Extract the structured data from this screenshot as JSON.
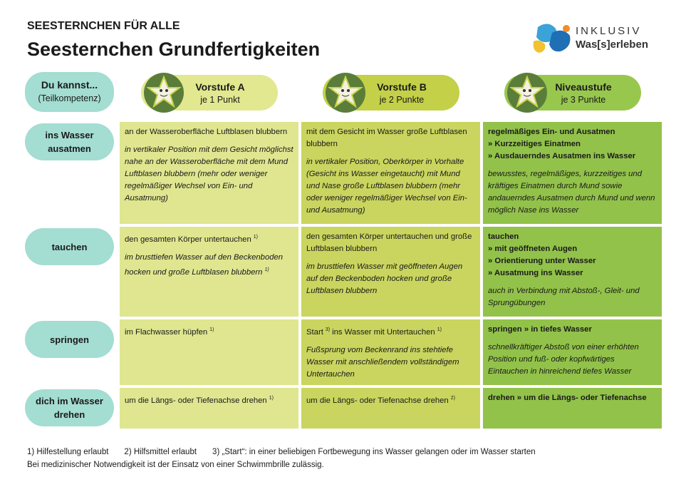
{
  "header": {
    "kicker": "SEESTERNCHEN FÜR ALLE",
    "title": "Seesternchen Grundfertigkeiten"
  },
  "logo": {
    "line1": "INKLUSIV",
    "line2": "Was[s]erleben"
  },
  "table": {
    "corner": {
      "title": "Du kannst...",
      "subtitle": "(Teilkompetenz)"
    },
    "levels": [
      {
        "name": "Vorstufe A",
        "points": "je 1 Punkt",
        "header_color": "#e1e88f",
        "color": "#dfe68f"
      },
      {
        "name": "Vorstufe B",
        "points": "je 2 Punkte",
        "header_color": "#c3d048",
        "color": "#c9d55e"
      },
      {
        "name": "Niveaustufe",
        "points": "je 3 Punkte",
        "header_color": "#98c74e",
        "color": "#92c24a"
      }
    ],
    "rows": [
      {
        "label": "ins Wasser ausatmen",
        "cells": [
          {
            "main": [
              "an der Wasseroberfläche Luftblasen blubbern"
            ],
            "detail": "in vertikaler Position mit dem Gesicht möglichst nahe an der Wasseroberfläche mit dem Mund Luftblasen blubbern (mehr oder weniger regelmäßiger Wechsel von Ein- und Ausatmung)"
          },
          {
            "main": [
              "mit dem Gesicht im Wasser große Luftblasen blubbern"
            ],
            "detail": "in vertikaler Position, Oberkörper in Vorhalte (Gesicht ins Wasser eingetaucht) mit Mund und Nase große Luftblasen blubbern (mehr oder weniger regelmäßiger Wechsel von Ein- und Ausatmung)"
          },
          {
            "main": [
              "regelmäßiges Ein- und Ausatmen",
              "» Kurzzeitiges Einatmen",
              "» Ausdauerndes Ausatmen ins Wasser"
            ],
            "detail": "bewusstes, regelmäßiges, kurzzeitiges und kräftiges Einatmen durch Mund sowie andauerndes Ausatmen durch Mund und wenn möglich Nase ins Wasser"
          }
        ]
      },
      {
        "label": "tauchen",
        "cells": [
          {
            "main": [
              [
                "den gesamten Körper untertauchen",
                {
                  "sup": "1)"
                }
              ]
            ],
            "detail": [
              "im brusttiefen Wasser auf den Beckenboden hocken und große Luftblasen blubbern",
              {
                "sup": "1)"
              }
            ]
          },
          {
            "main": [
              "den gesamten Körper untertauchen und große Luftblasen blubbern"
            ],
            "detail": "im brusttiefen Wasser mit geöffneten Augen auf den Beckenboden hocken und große Luftblasen blubbern"
          },
          {
            "main": [
              "tauchen",
              "» mit geöffneten Augen",
              "» Orientierung unter Wasser",
              "» Ausatmung ins Wasser"
            ],
            "detail": "auch in Verbindung mit Abstoß-, Gleit- und Sprungübungen"
          }
        ]
      },
      {
        "label": "springen",
        "cells": [
          {
            "main": [
              [
                "im Flachwasser hüpfen",
                {
                  "sup": "1)"
                }
              ]
            ]
          },
          {
            "main": [
              [
                "Start",
                {
                  "sup": "3)"
                },
                "ins Wasser mit Untertauchen",
                {
                  "sup": "1)"
                }
              ]
            ],
            "detail": "Fußsprung vom Beckenrand ins stehtiefe Wasser mit anschließendem vollständigem Untertauchen"
          },
          {
            "main": [
              "springen » in tiefes Wasser"
            ],
            "detail": "schnellkräftiger Abstoß von einer erhöhten Position und fuß- oder kopfwärtiges Eintauchen in hinreichend tiefes Wasser"
          }
        ]
      },
      {
        "label": "dich im Wasser drehen",
        "cells": [
          {
            "main": [
              [
                "um die Längs- oder Tiefenachse drehen",
                {
                  "sup": "1)"
                }
              ]
            ]
          },
          {
            "main": [
              [
                "um die Längs- oder Tiefenachse drehen",
                {
                  "sup": "2)"
                }
              ]
            ]
          },
          {
            "main": [
              "drehen » um die Längs- oder Tiefenachse"
            ]
          }
        ]
      }
    ]
  },
  "footnotes": {
    "notes": [
      "1) Hilfestellung erlaubt",
      "2) Hilfsmittel erlaubt",
      "3) „Start“: in einer beliebigen Fortbewegung ins Wasser gelangen oder im Wasser starten"
    ],
    "remark": "Bei medizinischer Notwendigkeit ist der Einsatz von einer Schwimmbrille zulässig."
  }
}
